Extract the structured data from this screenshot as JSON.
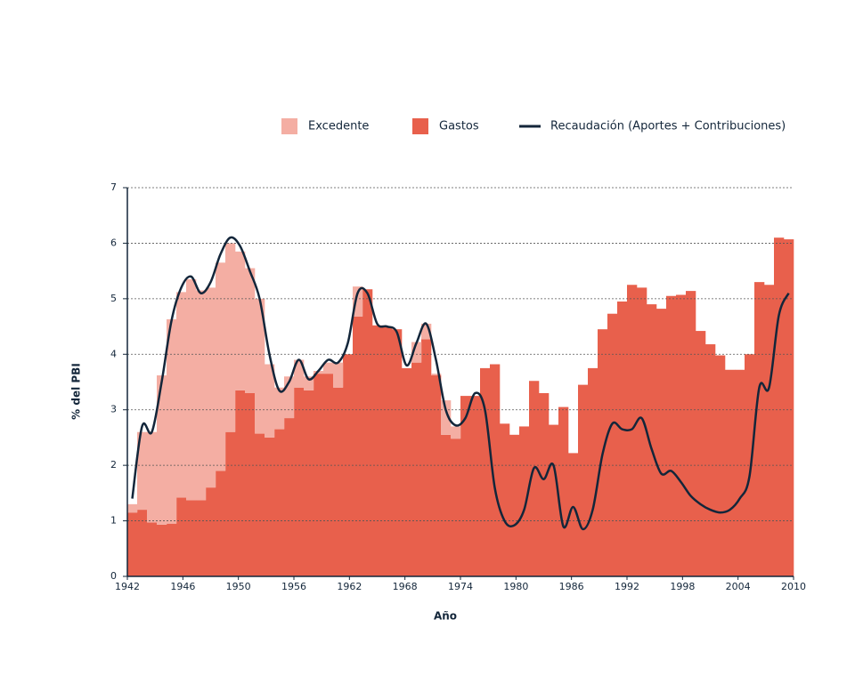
{
  "chart_data": {
    "type": "stacked-bar-line",
    "x_label": "Año",
    "y_label": "% del PBI",
    "categories": [
      null,
      null,
      null,
      null,
      null,
      null,
      null,
      null,
      null,
      null,
      null,
      null,
      null,
      null,
      null,
      null,
      null,
      null,
      null,
      null,
      null,
      null,
      null,
      null,
      null,
      null,
      null,
      null,
      null,
      null,
      null,
      null,
      null,
      null,
      null,
      null,
      null,
      null,
      null,
      null,
      null,
      null,
      null,
      null,
      null,
      null,
      null,
      null,
      null,
      null,
      null,
      null,
      null,
      null,
      null,
      null,
      null,
      null,
      null,
      null,
      null,
      null,
      null,
      null,
      null,
      null,
      null,
      null
    ],
    "xtick_labels": [
      "1942",
      "1946",
      "1950",
      "1956",
      "1962",
      "1968",
      "1974",
      "1980",
      "1986",
      "1992",
      "1998",
      "2004",
      "2010"
    ],
    "ylim": [
      0,
      7
    ],
    "yticks": [
      0,
      1,
      2,
      3,
      4,
      5,
      6,
      7
    ],
    "grid": true,
    "series": [
      {
        "name": "Gastos",
        "color": "#e8604c",
        "kind": "bar",
        "values": [
          1.15,
          1.2,
          0.97,
          0.93,
          0.95,
          1.42,
          1.37,
          1.37,
          1.6,
          1.9,
          2.6,
          3.35,
          3.3,
          2.57,
          2.5,
          2.65,
          2.85,
          3.4,
          3.35,
          3.65,
          3.65,
          3.4,
          4.0,
          4.68,
          5.17,
          4.52,
          4.5,
          4.45,
          3.75,
          3.85,
          4.27,
          3.62,
          2.55,
          2.48,
          3.25,
          3.25,
          3.75,
          3.82,
          2.75,
          2.55,
          2.7,
          3.52,
          3.3,
          2.73,
          3.05,
          2.22,
          3.45,
          3.75,
          4.45,
          4.73,
          4.95,
          5.25,
          5.2,
          4.9,
          4.82,
          5.05,
          5.07,
          5.14,
          4.42,
          4.18,
          3.98,
          3.72,
          3.72,
          4.0,
          5.3,
          5.25,
          6.1,
          6.07
        ]
      },
      {
        "name": "Excedente",
        "color": "#f4aea3",
        "kind": "bar",
        "values": [
          0.15,
          1.4,
          1.63,
          2.69,
          3.68,
          3.7,
          3.98,
          3.78,
          3.6,
          3.75,
          3.4,
          2.5,
          2.25,
          2.43,
          1.32,
          0.75,
          0.75,
          0.5,
          0.25,
          0.05,
          0.2,
          0.45,
          0,
          0.54,
          0,
          0,
          0,
          0,
          0,
          0.37,
          0.28,
          0.03,
          0.62,
          0.22,
          0,
          0,
          0,
          0,
          0,
          0,
          0,
          0,
          0,
          0,
          0,
          0,
          0,
          0,
          0,
          0,
          0,
          0,
          0,
          0,
          0,
          0,
          0,
          0,
          0,
          0,
          0,
          0,
          0,
          0,
          0,
          0,
          0,
          0
        ]
      },
      {
        "name": "Recaudación (Aportes + Contribuciones)",
        "color": "#13263a",
        "kind": "line",
        "values": [
          1.4,
          2.7,
          2.6,
          3.5,
          4.6,
          5.2,
          5.4,
          5.1,
          5.3,
          5.8,
          6.1,
          5.95,
          5.5,
          5.0,
          4.0,
          3.35,
          3.5,
          3.9,
          3.55,
          3.7,
          3.9,
          3.85,
          4.2,
          5.1,
          5.1,
          4.55,
          4.5,
          4.4,
          3.8,
          4.2,
          4.55,
          3.9,
          3.0,
          2.72,
          2.85,
          3.3,
          3.0,
          1.6,
          1.0,
          0.92,
          1.2,
          1.95,
          1.75,
          2.0,
          0.9,
          1.25,
          0.85,
          1.2,
          2.2,
          2.75,
          2.65,
          2.65,
          2.85,
          2.3,
          1.85,
          1.9,
          1.7,
          1.45,
          1.3,
          1.2,
          1.15,
          1.2,
          1.4,
          1.8,
          3.4,
          3.4,
          4.7,
          5.1
        ]
      }
    ]
  }
}
